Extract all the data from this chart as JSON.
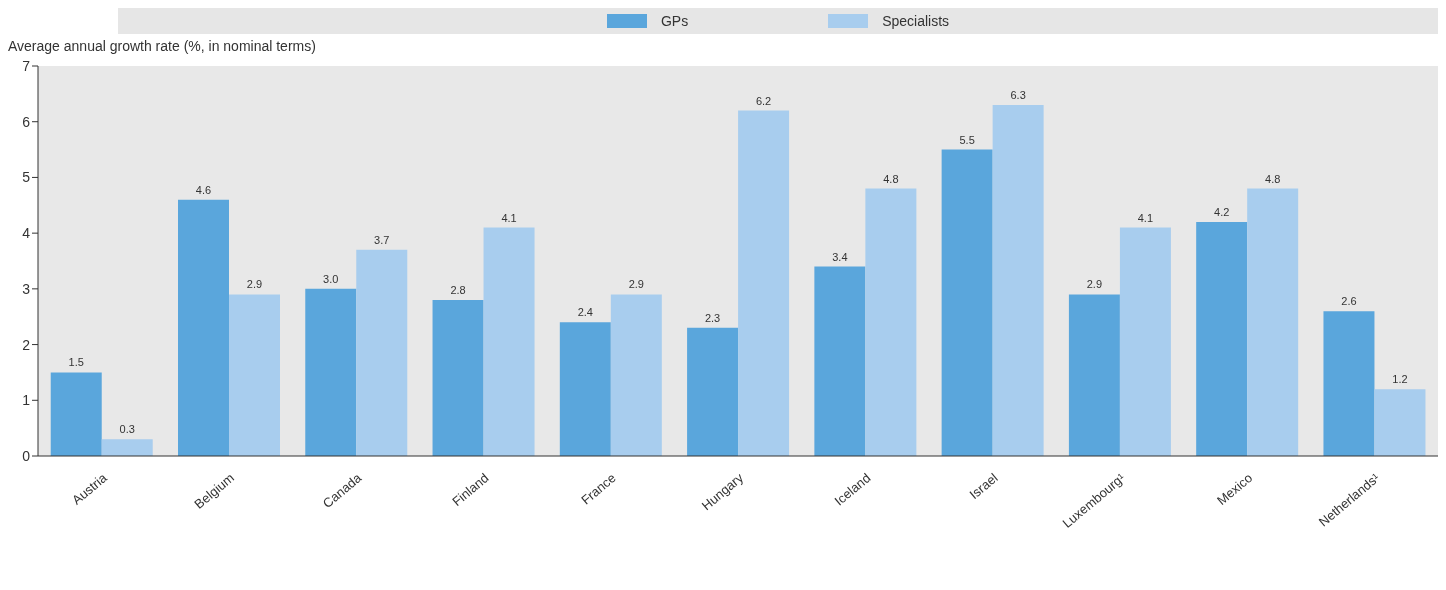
{
  "chart_data": {
    "type": "bar",
    "ylabel": "Average annual growth rate (%, in nominal terms)",
    "categories": [
      "Austria",
      "Belgium",
      "Canada",
      "Finland",
      "France",
      "Hungary",
      "Iceland",
      "Israel",
      "Luxembourg¹",
      "Mexico",
      "Netherlands¹"
    ],
    "series": [
      {
        "name": "GPs",
        "color": "#5aa6dc",
        "values": [
          1.5,
          4.6,
          3.0,
          2.8,
          2.4,
          2.3,
          3.4,
          5.5,
          2.9,
          4.2,
          2.6
        ],
        "value_labels": [
          "1.5",
          "4.6",
          "3.0",
          "2.8",
          "2.4",
          "2.3",
          "3.4",
          "5.5",
          "2.9",
          "4.2",
          "2.6"
        ]
      },
      {
        "name": "Specialists",
        "color": "#a8cdee",
        "values": [
          0.3,
          2.9,
          3.7,
          4.1,
          2.9,
          6.2,
          4.8,
          6.3,
          4.1,
          4.8,
          1.2
        ],
        "value_labels": [
          "0.3",
          "2.9",
          "3.7",
          "4.1",
          "2.9",
          "6.2",
          "4.8",
          "6.3",
          "4.1",
          "4.8",
          "1.2"
        ]
      }
    ],
    "ylim": [
      0,
      7
    ],
    "yticks": [
      0,
      1,
      2,
      3,
      4,
      5,
      6,
      7
    ],
    "legend": "top",
    "grid": false
  }
}
